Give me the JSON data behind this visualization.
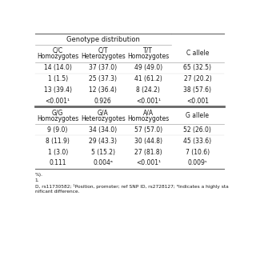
{
  "title": "Genotype distribution",
  "col1_header": [
    "C/C",
    "Homozygotes"
  ],
  "col2_header": [
    "C/T",
    "Heterozygotes"
  ],
  "col3_header": [
    "T/T",
    "Homozygotes"
  ],
  "col4_header": [
    "C allele"
  ],
  "section1_rows": [
    [
      "14 (14.0)",
      "37 (37.0)",
      "49 (49.0)",
      "65 (32.5)"
    ],
    [
      "1 (1.5)",
      "25 (37.3)",
      "41 (61.2)",
      "27 (20.2)"
    ],
    [
      "13 (39.4)",
      "12 (36.4)",
      "8 (24.2)",
      "38 (57.6)"
    ],
    [
      "<0.001¹",
      "0.926",
      "<0.001¹",
      "<0.001"
    ]
  ],
  "col1b_header": [
    "G/G",
    "Homozygotes"
  ],
  "col2b_header": [
    "G/A",
    "Heterozygotes"
  ],
  "col3b_header": [
    "A/A",
    "Homozygotes"
  ],
  "col4b_header": [
    "G allele"
  ],
  "section2_rows": [
    [
      "9 (9.0)",
      "34 (34.0)",
      "57 (57.0)",
      "52 (26.0)"
    ],
    [
      "8 (11.9)",
      "29 (43.3)",
      "30 (44.8)",
      "45 (33.6)"
    ],
    [
      "1 (3.0)",
      "5 (15.2)",
      "27 (81.8)",
      "7 (10.6)"
    ],
    [
      "0.111",
      "0.004ᵃ",
      "<0.001¹",
      "0.009ˢ"
    ]
  ],
  "footnotes": [
    "%).",
    "1.",
    "D, rs11730582; ¹Position, promoter; ref SNP ID, rs2728127; ᵃIndicates a highly sta",
    "nificant difference."
  ],
  "bg_color": "#ffffff",
  "text_color": "#1a1a1a",
  "line_color": "#aaaaaa",
  "thick_line_color": "#666666"
}
